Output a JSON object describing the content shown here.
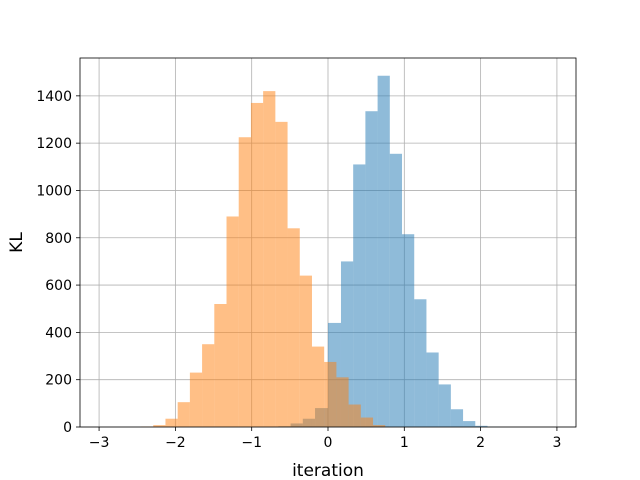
{
  "chart_data": {
    "type": "bar",
    "xlabel": "iteration",
    "ylabel": "KL",
    "xlim": [
      -3.25,
      3.25
    ],
    "ylim": [
      0,
      1560
    ],
    "xticks": [
      -3,
      -2,
      -1,
      0,
      1,
      2,
      3
    ],
    "xtick_labels": [
      "−3",
      "−2",
      "−1",
      "0",
      "1",
      "2",
      "3"
    ],
    "yticks": [
      0,
      200,
      400,
      600,
      800,
      1000,
      1200,
      1400
    ],
    "ytick_labels": [
      "0",
      "200",
      "400",
      "600",
      "800",
      "1000",
      "1200",
      "1400"
    ],
    "grid": true,
    "legend": "none",
    "series": [
      {
        "color": "#1f77b4",
        "alpha": 0.5,
        "bin_edges": [
          -0.65,
          -0.49,
          -0.33,
          -0.17,
          0.0,
          0.17,
          0.33,
          0.49,
          0.65,
          0.81,
          0.97,
          1.13,
          1.29,
          1.45,
          1.61,
          1.77,
          1.93,
          2.09,
          2.25
        ],
        "counts": [
          3,
          15,
          35,
          80,
          440,
          700,
          1110,
          1335,
          1485,
          1155,
          815,
          540,
          315,
          180,
          75,
          25,
          5,
          1
        ]
      },
      {
        "color": "#ff7f0e",
        "alpha": 0.5,
        "bin_edges": [
          -2.45,
          -2.29,
          -2.13,
          -1.97,
          -1.81,
          -1.65,
          -1.49,
          -1.33,
          -1.17,
          -1.01,
          -0.85,
          -0.69,
          -0.53,
          -0.37,
          -0.21,
          -0.05,
          0.11,
          0.27,
          0.43,
          0.59,
          0.75
        ],
        "counts": [
          2,
          8,
          35,
          105,
          230,
          350,
          520,
          890,
          1225,
          1370,
          1420,
          1290,
          840,
          640,
          340,
          275,
          210,
          95,
          40,
          8
        ]
      }
    ]
  }
}
